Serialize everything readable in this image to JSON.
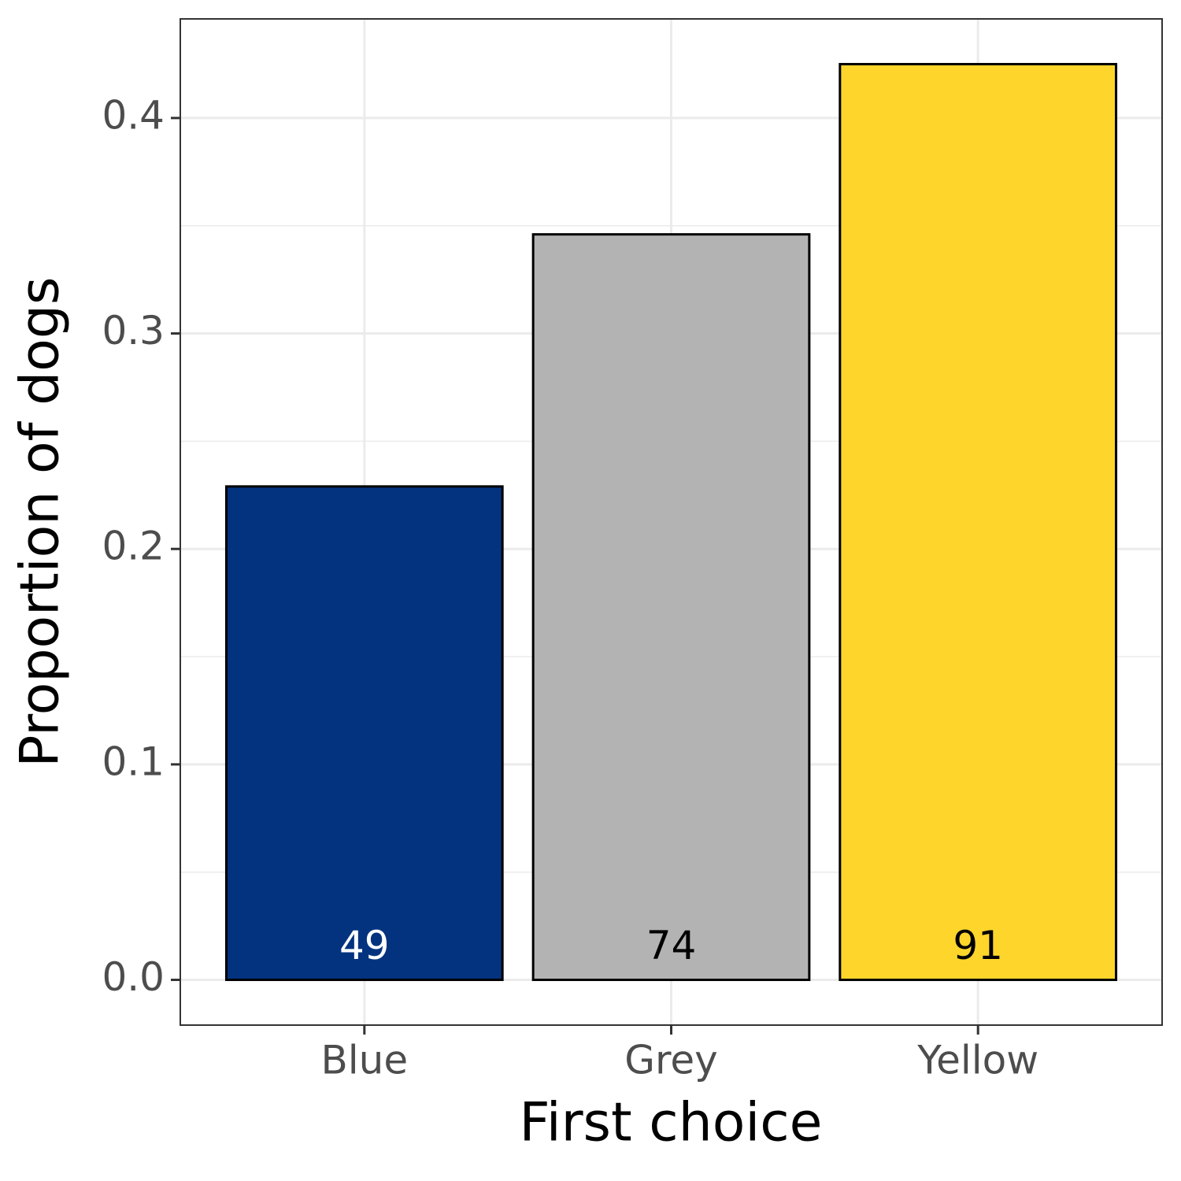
{
  "chart_data": {
    "type": "bar",
    "x_label": "First choice",
    "y_label": "Proportion of dogs",
    "categories": [
      "Blue",
      "Grey",
      "Yellow"
    ],
    "values": [
      0.229,
      0.346,
      0.425
    ],
    "counts": [
      49,
      74,
      91
    ],
    "colors": [
      "#03337f",
      "#b3b3b3",
      "#fdd52b"
    ],
    "label_colors": [
      "#ffffff",
      "#000000",
      "#000000"
    ],
    "ylim": [
      -0.021,
      0.446
    ],
    "yticks": [
      0.0,
      0.1,
      0.2,
      0.3,
      0.4
    ],
    "minor_yticks": [
      0.05,
      0.15,
      0.25,
      0.35
    ],
    "grid": true
  }
}
